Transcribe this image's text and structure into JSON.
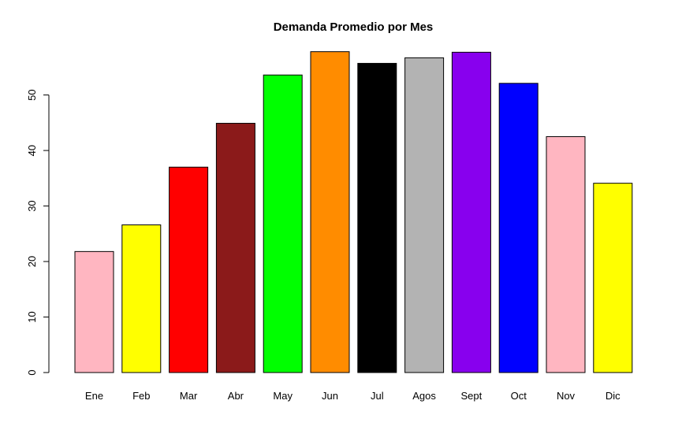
{
  "chart_data": {
    "type": "bar",
    "title": "Demanda Promedio por Mes",
    "xlabel": "",
    "ylabel": "",
    "categories": [
      "Ene",
      "Feb",
      "Mar",
      "Abr",
      "May",
      "Jun",
      "Jul",
      "Agos",
      "Sept",
      "Oct",
      "Nov",
      "Dic"
    ],
    "values": [
      21.8,
      26.6,
      37.0,
      44.9,
      53.6,
      57.8,
      55.7,
      56.7,
      57.7,
      52.1,
      42.5,
      34.1
    ],
    "colors": [
      "#ffb6c1",
      "#ffff00",
      "#ff0000",
      "#8b1a1a",
      "#00ff00",
      "#ff8c00",
      "#000000",
      "#b3b3b3",
      "#8800ee",
      "#0000ff",
      "#ffb6c1",
      "#ffff00"
    ],
    "y_ticks": [
      "0",
      "10",
      "20",
      "30",
      "40",
      "50"
    ],
    "ylim": [
      0,
      58
    ],
    "grid": false,
    "legend": "none"
  }
}
